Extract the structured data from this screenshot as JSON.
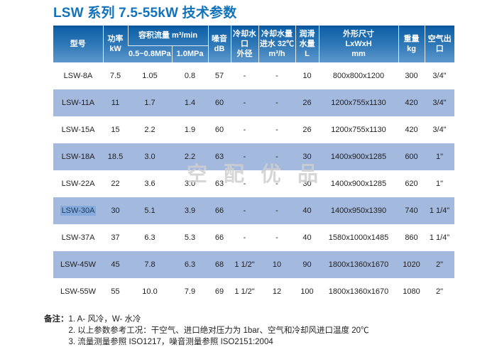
{
  "page": {
    "title": "LSW 系列 7.5-55kW 技术参数"
  },
  "watermark": "空配优品",
  "table": {
    "header": {
      "model": "型号",
      "power": "功率\nkW",
      "flow_group": "容积流量 m³/min",
      "flow_sub1": "0.5~0.8MPa",
      "flow_sub2": "1.0MPa",
      "noise": "噪音\ndB",
      "cooling_port": "冷却水口\n外径",
      "cooling_water": "冷却水量\n进水 32℃\nm³/h",
      "lube_water": "润滑\n水量\nL",
      "dimensions": "外形尺寸\nLxWxH\nmm",
      "weight": "重量\nkg",
      "air_outlet": "空气出口"
    },
    "columns_order": [
      "model",
      "power",
      "flow1",
      "flow2",
      "noise",
      "port",
      "cool",
      "lube",
      "dims",
      "weight",
      "outlet"
    ],
    "rows": [
      {
        "model": "LSW-8A",
        "power": "7.5",
        "flow1": "1.05",
        "flow2": "0.8",
        "noise": "57",
        "port": "-",
        "cool": "-",
        "lube": "10",
        "dims": "800x800x1200",
        "weight": "300",
        "outlet": "3/4\"",
        "highlight": false
      },
      {
        "model": "LSW-11A",
        "power": "11",
        "flow1": "1.7",
        "flow2": "1.4",
        "noise": "60",
        "port": "-",
        "cool": "-",
        "lube": "26",
        "dims": "1200x755x1130",
        "weight": "420",
        "outlet": "3/4\"",
        "highlight": false
      },
      {
        "model": "LSW-15A",
        "power": "15",
        "flow1": "2.2",
        "flow2": "1.9",
        "noise": "60",
        "port": "-",
        "cool": "-",
        "lube": "26",
        "dims": "1200x755x1130",
        "weight": "420",
        "outlet": "3/4\"",
        "highlight": false
      },
      {
        "model": "LSW-18A",
        "power": "18.5",
        "flow1": "3.0",
        "flow2": "2.2",
        "noise": "63",
        "port": "-",
        "cool": "-",
        "lube": "30",
        "dims": "1400x900x1285",
        "weight": "600",
        "outlet": "1\"",
        "highlight": false
      },
      {
        "model": "LSW-22A",
        "power": "22",
        "flow1": "3.6",
        "flow2": "3.0",
        "noise": "63",
        "port": "-",
        "cool": "-",
        "lube": "30",
        "dims": "1400x900x1285",
        "weight": "620",
        "outlet": "1\"",
        "highlight": false
      },
      {
        "model": "LSW-30A",
        "power": "30",
        "flow1": "5.1",
        "flow2": "3.9",
        "noise": "66",
        "port": "-",
        "cool": "-",
        "lube": "40",
        "dims": "1400x950x1390",
        "weight": "740",
        "outlet": "1 1/4\"",
        "highlight": true
      },
      {
        "model": "LSW-37A",
        "power": "37",
        "flow1": "6.3",
        "flow2": "5.3",
        "noise": "66",
        "port": "-",
        "cool": "-",
        "lube": "40",
        "dims": "1580x1000x1485",
        "weight": "860",
        "outlet": "1 1/4\"",
        "highlight": false
      },
      {
        "model": "LSW-45W",
        "power": "45",
        "flow1": "7.8",
        "flow2": "6.3",
        "noise": "68",
        "port": "1 1/2\"",
        "cool": "10",
        "lube": "90",
        "dims": "1800x1360x1670",
        "weight": "1020",
        "outlet": "2\"",
        "highlight": false
      },
      {
        "model": "LSW-55W",
        "power": "55",
        "flow1": "10.0",
        "flow2": "7.9",
        "noise": "69",
        "port": "1 1/2\"",
        "cool": "12",
        "lube": "100",
        "dims": "1800x1360x1670",
        "weight": "1080",
        "outlet": "2\"",
        "highlight": false
      }
    ]
  },
  "notes": {
    "label": "备注：",
    "items": [
      "1. A- 风冷，W- 水冷",
      "2. 以上参数参考工况：干空气、进口绝对压力为 1bar、空气和冷却风进口温度 20℃",
      "3. 流量测量参照 ISO1217，噪音测量参照 ISO2151:2004"
    ]
  },
  "colors": {
    "title_blue": "#1273bb",
    "header_gradient_top": "#084f96",
    "header_gradient_bottom": "#5d97cc",
    "row_stripe_blue": "#a4b9de",
    "model_selection_highlight": "#85aadb",
    "watermark_gray": "#cfcfcf"
  }
}
